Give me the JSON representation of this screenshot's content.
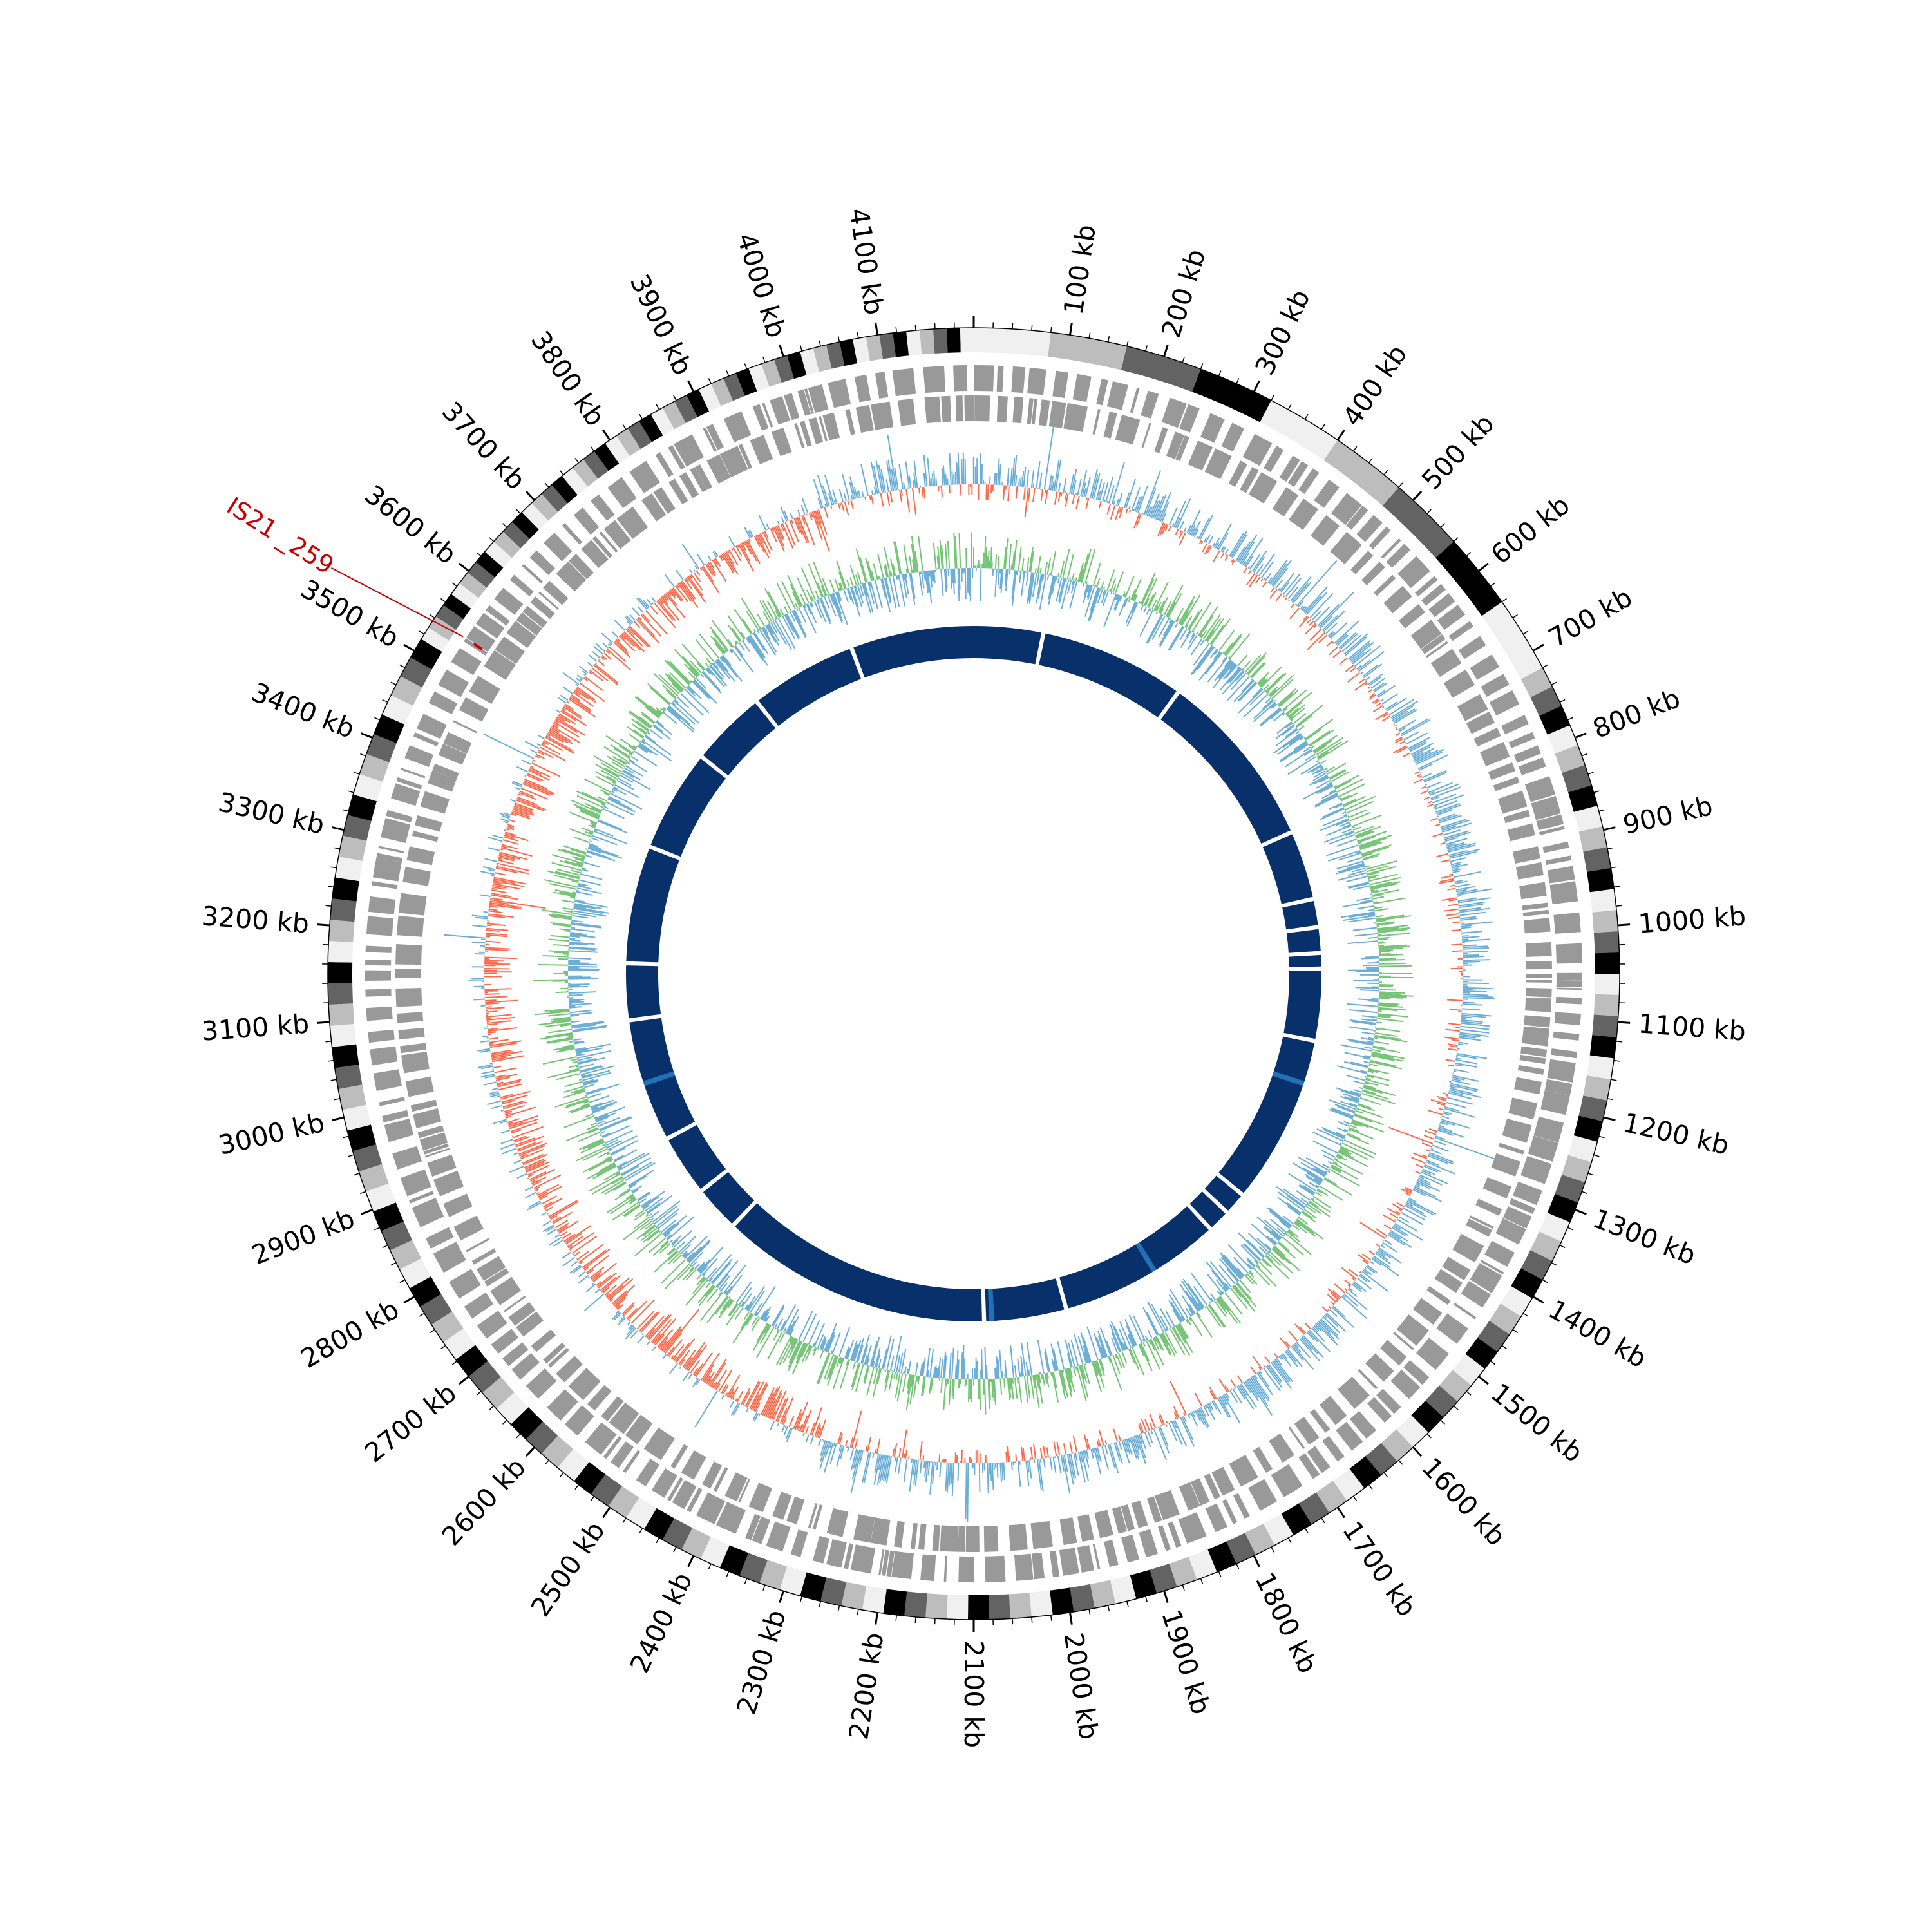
{
  "genome": {
    "length_kb": 4200,
    "tick_unit": "kb",
    "tick_labels": [
      "100 kb",
      "200 kb",
      "300 kb",
      "400 kb",
      "500 kb",
      "600 kb",
      "700 kb",
      "800 kb",
      "900 kb",
      "1000 kb",
      "1100 kb",
      "1200 kb",
      "1300 kb",
      "1400 kb",
      "1500 kb",
      "1600 kb",
      "1700 kb",
      "1800 kb",
      "1900 kb",
      "2000 kb",
      "2100 kb",
      "2200 kb",
      "2300 kb",
      "2400 kb",
      "2500 kb",
      "2600 kb",
      "2700 kb",
      "2800 kb",
      "2900 kb",
      "3000 kb",
      "3100 kb",
      "3200 kb",
      "3300 kb",
      "3400 kb",
      "3500 kb",
      "3600 kb",
      "3700 kb",
      "3800 kb",
      "3900 kb",
      "4000 kb",
      "4100 kb"
    ],
    "tick_values_kb": [
      100,
      200,
      300,
      400,
      500,
      600,
      700,
      800,
      900,
      1000,
      1100,
      1200,
      1300,
      1400,
      1500,
      1600,
      1700,
      1800,
      1900,
      2000,
      2100,
      2200,
      2300,
      2400,
      2500,
      2600,
      2700,
      2800,
      2900,
      3000,
      3100,
      3200,
      3300,
      3400,
      3500,
      3600,
      3700,
      3800,
      3900,
      4000,
      4100
    ]
  },
  "feature_label": {
    "text": "IS21 _259",
    "position_kb": 3540,
    "color": "#cc0000"
  },
  "tracks": [
    {
      "name": "karyotype-band-track",
      "colors": [
        "#f0f0f0",
        "#bdbdbd",
        "#636363",
        "#000000"
      ]
    },
    {
      "name": "gene-track",
      "color": "#999999"
    },
    {
      "name": "gc-skew-track",
      "positive_color": "#6baed6",
      "negative_color": "#fb6a4a"
    },
    {
      "name": "gc-content-track",
      "colors": [
        "#6baed6",
        "#74c476"
      ]
    },
    {
      "name": "synteny-track",
      "color": "#08306b",
      "highlight_color": "#2171b5"
    }
  ],
  "synteny_gaps_kb": [
    135,
    420,
    770,
    905,
    960,
    1010,
    1040,
    1180,
    1510,
    1555,
    1600,
    1920,
    2080,
    2610,
    2700,
    2820,
    3060,
    3170,
    3400,
    3600,
    3750,
    3960
  ]
}
